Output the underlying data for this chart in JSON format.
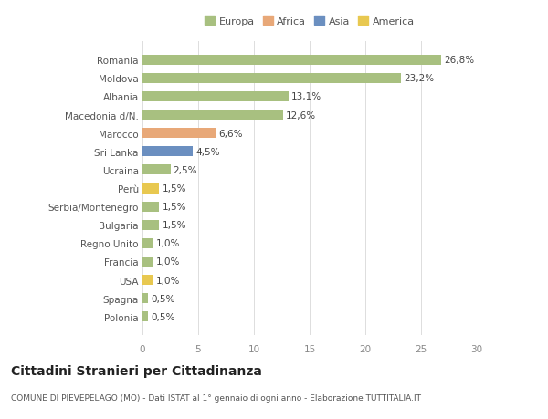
{
  "categories": [
    "Polonia",
    "Spagna",
    "USA",
    "Francia",
    "Regno Unito",
    "Bulgaria",
    "Serbia/Montenegro",
    "Perù",
    "Ucraina",
    "Sri Lanka",
    "Marocco",
    "Macedonia d/N.",
    "Albania",
    "Moldova",
    "Romania"
  ],
  "values": [
    0.5,
    0.5,
    1.0,
    1.0,
    1.0,
    1.5,
    1.5,
    1.5,
    2.5,
    4.5,
    6.6,
    12.6,
    13.1,
    23.2,
    26.8
  ],
  "labels": [
    "0,5%",
    "0,5%",
    "1,0%",
    "1,0%",
    "1,0%",
    "1,5%",
    "1,5%",
    "1,5%",
    "2,5%",
    "4,5%",
    "6,6%",
    "12,6%",
    "13,1%",
    "23,2%",
    "26,8%"
  ],
  "colors": [
    "#a8c080",
    "#a8c080",
    "#e8c850",
    "#a8c080",
    "#a8c080",
    "#a8c080",
    "#a8c080",
    "#e8c850",
    "#a8c080",
    "#6b8fc0",
    "#e8a878",
    "#a8c080",
    "#a8c080",
    "#a8c080",
    "#a8c080"
  ],
  "legend_labels": [
    "Europa",
    "Africa",
    "Asia",
    "America"
  ],
  "legend_colors": [
    "#a8c080",
    "#e8a878",
    "#6b8fc0",
    "#e8c850"
  ],
  "title": "Cittadini Stranieri per Cittadinanza",
  "subtitle": "COMUNE DI PIEVEPELAGO (MO) - Dati ISTAT al 1° gennaio di ogni anno - Elaborazione TUTTITALIA.IT",
  "xlim": [
    0,
    30
  ],
  "xticks": [
    0,
    5,
    10,
    15,
    20,
    25,
    30
  ],
  "background_color": "#ffffff",
  "plot_bg_color": "#ffffff",
  "bar_height": 0.55,
  "label_fontsize": 7.5,
  "tick_fontsize": 7.5,
  "title_fontsize": 10,
  "subtitle_fontsize": 6.5,
  "legend_fontsize": 8
}
